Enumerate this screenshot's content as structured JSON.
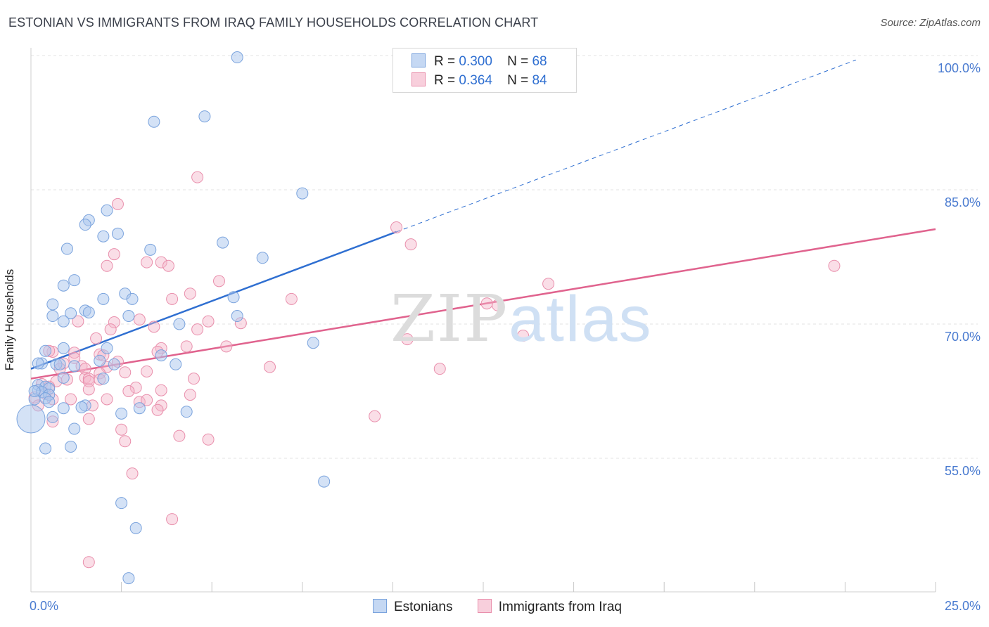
{
  "title": "ESTONIAN VS IMMIGRANTS FROM IRAQ FAMILY HOUSEHOLDS CORRELATION CHART",
  "source": "Source: ZipAtlas.com",
  "watermark": {
    "zip": "ZIP",
    "atlas": "atlas"
  },
  "legend": {
    "rows": [
      {
        "r_label": "R =",
        "r_value": "0.300",
        "n_label": "N =",
        "n_value": "68"
      },
      {
        "r_label": "R =",
        "r_value": "0.364",
        "n_label": "N =",
        "n_value": "84"
      }
    ]
  },
  "bottom_legend": {
    "series1": "Estonians",
    "series2": "Immigrants from Iraq"
  },
  "colors": {
    "blue_fill": "#a9c6ee",
    "blue_stroke": "#7aa3dd",
    "blue_line": "#2f6fd1",
    "pink_fill": "#f5b6c9",
    "pink_stroke": "#e98fac",
    "pink_line": "#e0638e",
    "grid": "#e3e3e3",
    "tick_text": "#4a7bd0"
  },
  "chart_data": {
    "type": "scatter",
    "title": "ESTONIAN VS IMMIGRANTS FROM IRAQ FAMILY HOUSEHOLDS CORRELATION CHART",
    "xlabel": "",
    "ylabel": "Family Households",
    "xlim": [
      0,
      25
    ],
    "ylim": [
      40,
      102
    ],
    "x_tick_labels": [
      "0.0%",
      "25.0%"
    ],
    "y_ticks": [
      55,
      70,
      85,
      100
    ],
    "y_tick_labels": [
      "55.0%",
      "70.0%",
      "85.0%",
      "100.0%"
    ],
    "x_minor_ticks": [
      2.5,
      5,
      7.5,
      10,
      12.5,
      15,
      17.5,
      20,
      22.5,
      25
    ],
    "series": [
      {
        "name": "Estonians",
        "R": 0.3,
        "N": 68,
        "trend": {
          "x0": 0,
          "y0": 65.0,
          "x1": 10.1,
          "y1": 80.3,
          "dash_to_x": 22.8,
          "dash_to_y": 99.5
        },
        "points": [
          [
            5.7,
            99.8
          ],
          [
            4.8,
            93.2
          ],
          [
            3.4,
            92.6
          ],
          [
            7.5,
            84.6
          ],
          [
            2.1,
            82.7
          ],
          [
            1.6,
            81.6
          ],
          [
            1.5,
            81.1
          ],
          [
            2.4,
            80.1
          ],
          [
            2.0,
            79.8
          ],
          [
            1.0,
            78.4
          ],
          [
            3.3,
            78.3
          ],
          [
            5.3,
            79.1
          ],
          [
            6.4,
            77.4
          ],
          [
            1.2,
            74.9
          ],
          [
            0.9,
            74.3
          ],
          [
            2.6,
            73.4
          ],
          [
            5.6,
            73.0
          ],
          [
            2.0,
            72.8
          ],
          [
            2.8,
            72.8
          ],
          [
            0.6,
            72.2
          ],
          [
            1.5,
            71.5
          ],
          [
            1.6,
            71.3
          ],
          [
            1.1,
            71.2
          ],
          [
            2.7,
            70.9
          ],
          [
            0.6,
            70.9
          ],
          [
            0.9,
            70.3
          ],
          [
            5.7,
            70.9
          ],
          [
            4.1,
            70.0
          ],
          [
            7.8,
            67.9
          ],
          [
            0.9,
            67.3
          ],
          [
            2.1,
            67.3
          ],
          [
            0.4,
            67.0
          ],
          [
            3.6,
            66.5
          ],
          [
            1.9,
            65.9
          ],
          [
            0.3,
            65.6
          ],
          [
            0.7,
            65.5
          ],
          [
            0.8,
            65.5
          ],
          [
            1.2,
            65.3
          ],
          [
            2.3,
            65.5
          ],
          [
            4.0,
            65.5
          ],
          [
            0.9,
            64.0
          ],
          [
            2.0,
            63.9
          ],
          [
            0.2,
            63.2
          ],
          [
            0.4,
            63.0
          ],
          [
            0.5,
            62.8
          ],
          [
            0.2,
            62.6
          ],
          [
            0.3,
            62.4
          ],
          [
            0.5,
            62.1
          ],
          [
            0.4,
            61.7
          ],
          [
            0.1,
            61.6
          ],
          [
            0.5,
            61.3
          ],
          [
            1.5,
            60.9
          ],
          [
            0.9,
            60.6
          ],
          [
            1.4,
            60.7
          ],
          [
            3.0,
            60.6
          ],
          [
            4.3,
            60.2
          ],
          [
            2.5,
            60.0
          ],
          [
            0.6,
            59.6
          ],
          [
            0.0,
            59.4
          ],
          [
            1.2,
            58.3
          ],
          [
            0.4,
            56.1
          ],
          [
            1.1,
            56.3
          ],
          [
            8.1,
            52.4
          ],
          [
            2.5,
            50.0
          ],
          [
            2.9,
            47.2
          ],
          [
            2.7,
            41.6
          ],
          [
            0.2,
            65.6
          ],
          [
            0.1,
            62.5
          ]
        ]
      },
      {
        "name": "Immigrants from Iraq",
        "R": 0.364,
        "N": 84,
        "trend": {
          "x0": 0,
          "y0": 63.9,
          "x1": 25.0,
          "y1": 80.6
        },
        "points": [
          [
            4.6,
            86.4
          ],
          [
            2.4,
            83.4
          ],
          [
            10.1,
            80.8
          ],
          [
            10.5,
            78.9
          ],
          [
            22.2,
            76.5
          ],
          [
            2.3,
            77.8
          ],
          [
            3.2,
            76.9
          ],
          [
            3.6,
            76.9
          ],
          [
            3.8,
            76.5
          ],
          [
            2.1,
            76.5
          ],
          [
            5.2,
            74.8
          ],
          [
            14.3,
            74.5
          ],
          [
            4.4,
            73.4
          ],
          [
            7.2,
            72.8
          ],
          [
            3.9,
            72.8
          ],
          [
            12.6,
            72.3
          ],
          [
            12.9,
            72.1
          ],
          [
            1.3,
            70.3
          ],
          [
            3.0,
            70.5
          ],
          [
            4.9,
            70.3
          ],
          [
            5.8,
            70.1
          ],
          [
            2.3,
            70.2
          ],
          [
            2.2,
            69.4
          ],
          [
            4.6,
            69.4
          ],
          [
            13.6,
            68.7
          ],
          [
            10.4,
            68.3
          ],
          [
            1.8,
            68.4
          ],
          [
            3.4,
            69.7
          ],
          [
            4.3,
            67.5
          ],
          [
            5.4,
            67.5
          ],
          [
            3.6,
            67.3
          ],
          [
            0.6,
            66.9
          ],
          [
            1.2,
            66.8
          ],
          [
            1.9,
            66.6
          ],
          [
            2.0,
            66.5
          ],
          [
            1.2,
            66.2
          ],
          [
            0.9,
            65.6
          ],
          [
            1.4,
            65.3
          ],
          [
            1.5,
            65.0
          ],
          [
            2.1,
            65.2
          ],
          [
            0.8,
            65.0
          ],
          [
            6.6,
            65.2
          ],
          [
            11.3,
            65.0
          ],
          [
            3.2,
            64.7
          ],
          [
            2.6,
            64.6
          ],
          [
            1.5,
            64.0
          ],
          [
            1.6,
            63.9
          ],
          [
            1.9,
            64.5
          ],
          [
            1.0,
            63.8
          ],
          [
            0.7,
            63.6
          ],
          [
            1.6,
            63.6
          ],
          [
            4.5,
            63.9
          ],
          [
            0.3,
            63.3
          ],
          [
            0.5,
            63.0
          ],
          [
            2.9,
            62.9
          ],
          [
            1.6,
            62.7
          ],
          [
            3.6,
            62.6
          ],
          [
            2.7,
            62.5
          ],
          [
            0.4,
            62.2
          ],
          [
            4.4,
            62.1
          ],
          [
            0.1,
            61.8
          ],
          [
            0.6,
            61.6
          ],
          [
            2.1,
            61.6
          ],
          [
            3.0,
            61.3
          ],
          [
            3.2,
            61.5
          ],
          [
            3.6,
            60.9
          ],
          [
            1.7,
            60.9
          ],
          [
            3.5,
            60.4
          ],
          [
            9.5,
            59.7
          ],
          [
            0.6,
            59.1
          ],
          [
            1.6,
            59.4
          ],
          [
            2.5,
            58.2
          ],
          [
            4.1,
            57.5
          ],
          [
            4.9,
            57.1
          ],
          [
            2.6,
            56.9
          ],
          [
            2.8,
            53.3
          ],
          [
            3.9,
            48.2
          ],
          [
            1.6,
            43.4
          ],
          [
            0.2,
            60.9
          ],
          [
            1.1,
            61.6
          ],
          [
            2.4,
            65.8
          ],
          [
            0.5,
            67.0
          ],
          [
            1.9,
            63.8
          ],
          [
            3.5,
            66.9
          ]
        ]
      }
    ]
  }
}
